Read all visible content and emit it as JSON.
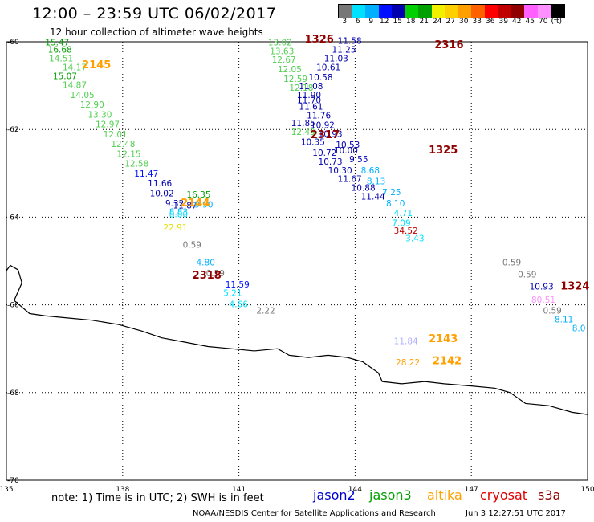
{
  "header": {
    "title": "12:00 – 23:59 UTC 06/02/2017",
    "subtitle": "12 hour collection of altimeter wave heights"
  },
  "colorbar": {
    "ticks": [
      "3",
      "6",
      "9",
      "12",
      "15",
      "18",
      "21",
      "24",
      "27",
      "30",
      "33",
      "36",
      "39",
      "42",
      "45",
      "70",
      "(ft)"
    ],
    "colors": [
      "#777777",
      "#00e0ff",
      "#00b0ff",
      "#0010ff",
      "#0000b0",
      "#00d000",
      "#00a000",
      "#f0f000",
      "#ffd000",
      "#ffa000",
      "#ff6000",
      "#ff0000",
      "#c00000",
      "#900000",
      "#ff60ff",
      "#ff90ff",
      "#000000"
    ]
  },
  "map": {
    "lon_range": [
      135,
      150
    ],
    "lat_range": [
      -70,
      -60
    ],
    "lon_ticks": [
      "135",
      "138",
      "141",
      "144",
      "147",
      "150"
    ],
    "lat_ticks": [
      "-60",
      "-62",
      "-64",
      "-66",
      "-68",
      "-70"
    ],
    "coastline": [
      [
        135,
        -65.22
      ],
      [
        135.1,
        -65.1
      ],
      [
        135.3,
        -65.2
      ],
      [
        135.4,
        -65.5
      ],
      [
        135.2,
        -65.9
      ],
      [
        135.6,
        -66.2
      ],
      [
        136.0,
        -66.25
      ],
      [
        136.6,
        -66.3
      ],
      [
        137.2,
        -66.35
      ],
      [
        137.9,
        -66.45
      ],
      [
        138.5,
        -66.6
      ],
      [
        139.0,
        -66.75
      ],
      [
        139.6,
        -66.85
      ],
      [
        140.2,
        -66.95
      ],
      [
        140.8,
        -67.0
      ],
      [
        141.4,
        -67.05
      ],
      [
        142.0,
        -67.0
      ],
      [
        142.3,
        -67.15
      ],
      [
        142.8,
        -67.2
      ],
      [
        143.3,
        -67.15
      ],
      [
        143.8,
        -67.2
      ],
      [
        144.2,
        -67.3
      ],
      [
        144.6,
        -67.55
      ],
      [
        144.7,
        -67.75
      ],
      [
        145.2,
        -67.8
      ],
      [
        145.8,
        -67.75
      ],
      [
        146.3,
        -67.8
      ],
      [
        147.0,
        -67.85
      ],
      [
        147.6,
        -67.9
      ],
      [
        148.0,
        -68.0
      ],
      [
        148.4,
        -68.25
      ],
      [
        149.0,
        -68.3
      ],
      [
        149.6,
        -68.45
      ],
      [
        150,
        -68.5
      ]
    ],
    "labels": [
      {
        "t": "15.47",
        "lon": 136.0,
        "lat": -60.08,
        "c": "#00a000"
      },
      {
        "t": "16.68",
        "lon": 136.07,
        "lat": -60.25,
        "c": "#00a000"
      },
      {
        "t": "14.51",
        "lon": 136.1,
        "lat": -60.45,
        "c": "#50d050"
      },
      {
        "t": "14.17",
        "lon": 136.45,
        "lat": -60.65,
        "c": "#50d050"
      },
      {
        "t": "15.07",
        "lon": 136.2,
        "lat": -60.85,
        "c": "#00a000"
      },
      {
        "t": "14.87",
        "lon": 136.45,
        "lat": -61.05,
        "c": "#50d050"
      },
      {
        "t": "14.05",
        "lon": 136.65,
        "lat": -61.28,
        "c": "#50d050"
      },
      {
        "t": "12.90",
        "lon": 136.9,
        "lat": -61.5,
        "c": "#50d050"
      },
      {
        "t": "13.30",
        "lon": 137.1,
        "lat": -61.73,
        "c": "#50d050"
      },
      {
        "t": "12.97",
        "lon": 137.3,
        "lat": -61.95,
        "c": "#50d050"
      },
      {
        "t": "12.01",
        "lon": 137.5,
        "lat": -62.18,
        "c": "#50d050"
      },
      {
        "t": "12.48",
        "lon": 137.7,
        "lat": -62.4,
        "c": "#50d050"
      },
      {
        "t": "12.15",
        "lon": 137.85,
        "lat": -62.63,
        "c": "#50d050"
      },
      {
        "t": "12.58",
        "lon": 138.05,
        "lat": -62.85,
        "c": "#50d050"
      },
      {
        "t": "11.47",
        "lon": 138.3,
        "lat": -63.08,
        "c": "#0010ff"
      },
      {
        "t": "11.66",
        "lon": 138.65,
        "lat": -63.3,
        "c": "#0000b0"
      },
      {
        "t": "10.02",
        "lon": 138.7,
        "lat": -63.53,
        "c": "#0000b0"
      },
      {
        "t": "9.32",
        "lon": 139.1,
        "lat": -63.75,
        "c": "#0000b0"
      },
      {
        "t": "11.87",
        "lon": 139.3,
        "lat": -63.8,
        "c": "#0000b0"
      },
      {
        "t": "16.35",
        "lon": 139.65,
        "lat": -63.55,
        "c": "#00a000"
      },
      {
        "t": "9.90",
        "lon": 139.85,
        "lat": -63.78,
        "c": "#00b0ff"
      },
      {
        "t": "8.83",
        "lon": 139.2,
        "lat": -63.95,
        "c": "#00b0ff"
      },
      {
        "t": "8.80",
        "lon": 139.2,
        "lat": -64.0,
        "c": "#00e0ff"
      },
      {
        "t": "22.91",
        "lon": 139.05,
        "lat": -64.3,
        "c": "#e0e000"
      },
      {
        "t": "0.59",
        "lon": 139.55,
        "lat": -64.7,
        "c": "#777777"
      },
      {
        "t": "4.80",
        "lon": 139.9,
        "lat": -65.1,
        "c": "#00b0ff"
      },
      {
        "t": "0.59",
        "lon": 140.15,
        "lat": -65.35,
        "c": "#777777"
      },
      {
        "t": "11.59",
        "lon": 140.65,
        "lat": -65.6,
        "c": "#0010ff"
      },
      {
        "t": "5.21",
        "lon": 140.6,
        "lat": -65.8,
        "c": "#00e0ff"
      },
      {
        "t": "4.66",
        "lon": 140.75,
        "lat": -66.05,
        "c": "#00e0ff"
      },
      {
        "t": "2.22",
        "lon": 141.45,
        "lat": -66.2,
        "c": "#777777"
      },
      {
        "t": "13.02",
        "lon": 141.75,
        "lat": -60.08,
        "c": "#50d050"
      },
      {
        "t": "13.63",
        "lon": 141.8,
        "lat": -60.28,
        "c": "#50d050"
      },
      {
        "t": "12.67",
        "lon": 141.85,
        "lat": -60.48,
        "c": "#50d050"
      },
      {
        "t": "12.05",
        "lon": 142.0,
        "lat": -60.7,
        "c": "#50d050"
      },
      {
        "t": "12.59",
        "lon": 142.15,
        "lat": -60.92,
        "c": "#50d050"
      },
      {
        "t": "12.18",
        "lon": 142.3,
        "lat": -61.12,
        "c": "#50d050"
      },
      {
        "t": "11.85",
        "lon": 142.35,
        "lat": -61.92,
        "c": "#0000b0"
      },
      {
        "t": "12.49",
        "lon": 142.35,
        "lat": -62.12,
        "c": "#50d050"
      },
      {
        "t": "10.35",
        "lon": 142.6,
        "lat": -62.35,
        "c": "#0000b0"
      },
      {
        "t": "10.72",
        "lon": 142.9,
        "lat": -62.6,
        "c": "#0000b0"
      },
      {
        "t": "10.73",
        "lon": 143.05,
        "lat": -62.8,
        "c": "#0000b0"
      },
      {
        "t": "10.30",
        "lon": 143.3,
        "lat": -63.0,
        "c": "#0000b0"
      },
      {
        "t": "11.67",
        "lon": 143.55,
        "lat": -63.2,
        "c": "#0000b0"
      },
      {
        "t": "10.88",
        "lon": 143.9,
        "lat": -63.4,
        "c": "#0000b0"
      },
      {
        "t": "11.44",
        "lon": 144.15,
        "lat": -63.6,
        "c": "#0000b0"
      },
      {
        "t": "11.58",
        "lon": 143.55,
        "lat": -60.05,
        "c": "#0000b0"
      },
      {
        "t": "11.25",
        "lon": 143.4,
        "lat": -60.25,
        "c": "#0000b0"
      },
      {
        "t": "11.03",
        "lon": 143.2,
        "lat": -60.45,
        "c": "#0000b0"
      },
      {
        "t": "10.61",
        "lon": 143.0,
        "lat": -60.65,
        "c": "#0000b0"
      },
      {
        "t": "10.58",
        "lon": 142.8,
        "lat": -60.88,
        "c": "#0000b0"
      },
      {
        "t": "11.08",
        "lon": 142.55,
        "lat": -61.08,
        "c": "#0000b0"
      },
      {
        "t": "11.90",
        "lon": 142.5,
        "lat": -61.28,
        "c": "#0000b0"
      },
      {
        "t": "11.70",
        "lon": 142.5,
        "lat": -61.4,
        "c": "#0000b0"
      },
      {
        "t": "11.61",
        "lon": 142.55,
        "lat": -61.55,
        "c": "#0000b0"
      },
      {
        "t": "11.76",
        "lon": 142.75,
        "lat": -61.75,
        "c": "#0000b0"
      },
      {
        "t": "10.92",
        "lon": 142.85,
        "lat": -61.97,
        "c": "#0000b0"
      },
      {
        "t": "10.93",
        "lon": 143.05,
        "lat": -62.17,
        "c": "#0000b0"
      },
      {
        "t": "10.53",
        "lon": 143.5,
        "lat": -62.42,
        "c": "#0000b0"
      },
      {
        "t": "10.00",
        "lon": 143.45,
        "lat": -62.55,
        "c": "#0000b0"
      },
      {
        "t": "9.55",
        "lon": 143.85,
        "lat": -62.75,
        "c": "#0000b0"
      },
      {
        "t": "8.68",
        "lon": 144.15,
        "lat": -63.0,
        "c": "#00b0ff"
      },
      {
        "t": "8.13",
        "lon": 144.3,
        "lat": -63.25,
        "c": "#00b0ff"
      },
      {
        "t": "7.25",
        "lon": 144.7,
        "lat": -63.5,
        "c": "#00b0ff"
      },
      {
        "t": "8.10",
        "lon": 144.8,
        "lat": -63.75,
        "c": "#00b0ff"
      },
      {
        "t": "4.71",
        "lon": 145.0,
        "lat": -63.97,
        "c": "#00e0ff"
      },
      {
        "t": "7.09",
        "lon": 144.95,
        "lat": -64.2,
        "c": "#00e0ff"
      },
      {
        "t": "34.52",
        "lon": 145.0,
        "lat": -64.38,
        "c": "#c00000"
      },
      {
        "t": "3.43",
        "lon": 145.3,
        "lat": -64.55,
        "c": "#00e0ff"
      },
      {
        "t": "0.59",
        "lon": 147.8,
        "lat": -65.1,
        "c": "#777777"
      },
      {
        "t": "0.59",
        "lon": 148.2,
        "lat": -65.38,
        "c": "#777777"
      },
      {
        "t": "10.93",
        "lon": 148.5,
        "lat": -65.65,
        "c": "#0000b0"
      },
      {
        "t": "80.51",
        "lon": 148.55,
        "lat": -65.95,
        "c": "#ff90ff"
      },
      {
        "t": "0.59",
        "lon": 148.85,
        "lat": -66.2,
        "c": "#777777"
      },
      {
        "t": "8.11",
        "lon": 149.15,
        "lat": -66.4,
        "c": "#00b0ff"
      },
      {
        "t": "8.0",
        "lon": 149.6,
        "lat": -66.6,
        "c": "#00b0ff"
      },
      {
        "t": "11.84",
        "lon": 145.0,
        "lat": -66.9,
        "c": "#b0b0ff"
      },
      {
        "t": "28.22",
        "lon": 145.05,
        "lat": -67.38,
        "c": "#ffa000"
      }
    ],
    "passes": [
      {
        "t": "2145",
        "lon": 136.95,
        "lat": -60.6,
        "c": "#ffa000"
      },
      {
        "t": "2144",
        "lon": 139.5,
        "lat": -63.75,
        "c": "#ffa000"
      },
      {
        "t": "2318",
        "lon": 139.8,
        "lat": -65.4,
        "c": "#900000"
      },
      {
        "t": "1326",
        "lon": 142.7,
        "lat": -60.02,
        "c": "#900000"
      },
      {
        "t": "2316",
        "lon": 146.05,
        "lat": -60.15,
        "c": "#900000"
      },
      {
        "t": "2317",
        "lon": 142.85,
        "lat": -62.2,
        "c": "#900000"
      },
      {
        "t": "1325",
        "lon": 145.9,
        "lat": -62.55,
        "c": "#900000"
      },
      {
        "t": "1324",
        "lon": 149.3,
        "lat": -65.65,
        "c": "#900000"
      },
      {
        "t": "2143",
        "lon": 145.9,
        "lat": -66.85,
        "c": "#ffa000"
      },
      {
        "t": "2142",
        "lon": 146.0,
        "lat": -67.35,
        "c": "#ffa000"
      }
    ]
  },
  "footer": {
    "note": "note:  1) Time is in UTC;  2) SWH is in feet",
    "satellites": [
      {
        "name": "jason2",
        "color": "#0000d0"
      },
      {
        "name": "jason3",
        "color": "#00a000"
      },
      {
        "name": "altika",
        "color": "#ffa000"
      },
      {
        "name": "cryosat",
        "color": "#e00000"
      },
      {
        "name": "s3a",
        "color": "#900000"
      }
    ],
    "credit": "NOAA/NESDIS Center for Satellite Applications and Research",
    "timestamp": "Jun  3 12:27:51 UTC 2017"
  }
}
